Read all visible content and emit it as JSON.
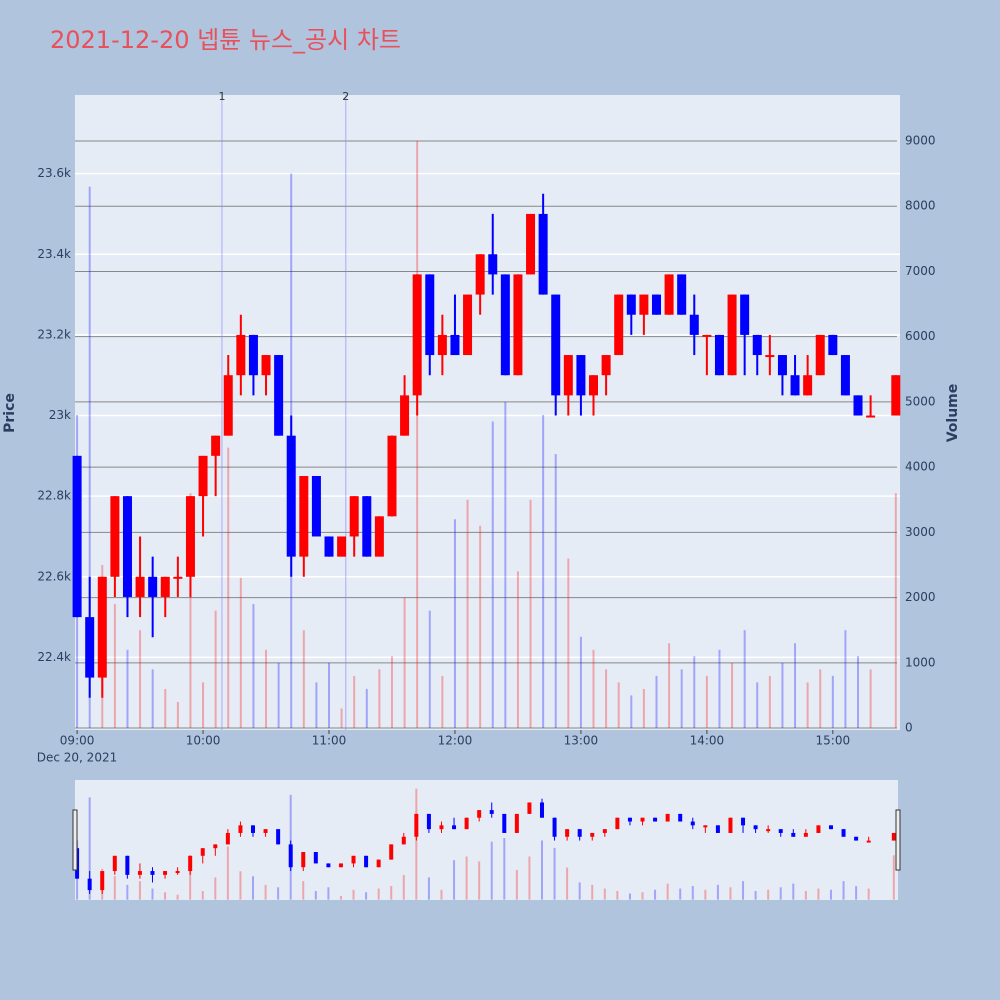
{
  "chart_data": {
    "type": "candlestick",
    "title": "2021-12-20 넵튠 뉴스_공시 차트",
    "y_label": "Price",
    "y2_label": "Volume",
    "x_date_label": "Dec 20, 2021",
    "increasing_color": "#ff0000",
    "decreasing_color": "#0000ff",
    "grid": true,
    "rangeslider": true,
    "xlim": [
      "08:59",
      "15:32"
    ],
    "xticks": [
      "09:00",
      "10:00",
      "11:00",
      "12:00",
      "13:00",
      "14:00",
      "15:00"
    ],
    "ylim": [
      22220,
      23795
    ],
    "yticks": [
      {
        "value": 22400,
        "label": "22.4k"
      },
      {
        "value": 22600,
        "label": "22.6k"
      },
      {
        "value": 22800,
        "label": "22.8k"
      },
      {
        "value": 23000,
        "label": "23k"
      },
      {
        "value": 23200,
        "label": "23.2k"
      },
      {
        "value": 23400,
        "label": "23.4k"
      },
      {
        "value": 23600,
        "label": "23.6k"
      }
    ],
    "y2lim": [
      -30,
      9705
    ],
    "y2ticks": [
      0,
      1000,
      2000,
      3000,
      4000,
      5000,
      6000,
      7000,
      8000,
      9000
    ],
    "annotations": [
      {
        "x": "10:09",
        "text": "1"
      },
      {
        "x": "11:08",
        "text": "2"
      }
    ],
    "x": [
      "09:00",
      "09:06",
      "09:12",
      "09:18",
      "09:24",
      "09:30",
      "09:36",
      "09:42",
      "09:48",
      "09:54",
      "10:00",
      "10:06",
      "10:12",
      "10:18",
      "10:24",
      "10:30",
      "10:36",
      "10:42",
      "10:48",
      "10:54",
      "11:00",
      "11:06",
      "11:12",
      "11:18",
      "11:24",
      "11:30",
      "11:36",
      "11:42",
      "11:48",
      "11:54",
      "12:00",
      "12:06",
      "12:12",
      "12:18",
      "12:24",
      "12:30",
      "12:36",
      "12:42",
      "12:48",
      "12:54",
      "13:00",
      "13:06",
      "13:12",
      "13:18",
      "13:24",
      "13:30",
      "13:36",
      "13:42",
      "13:48",
      "13:54",
      "14:00",
      "14:06",
      "14:12",
      "14:18",
      "14:24",
      "14:30",
      "14:36",
      "14:42",
      "14:48",
      "14:54",
      "15:00",
      "15:06",
      "15:12",
      "15:18",
      "15:30"
    ],
    "open": [
      22900,
      22500,
      22350,
      22600,
      22800,
      22550,
      22600,
      22550,
      22600,
      22600,
      22800,
      22900,
      22950,
      23100,
      23200,
      23100,
      23150,
      22950,
      22650,
      22850,
      22700,
      22650,
      22700,
      22800,
      22650,
      22750,
      22950,
      23050,
      23350,
      23150,
      23200,
      23150,
      23300,
      23400,
      23350,
      23100,
      23350,
      23500,
      23300,
      23050,
      23150,
      23050,
      23100,
      23150,
      23300,
      23250,
      23300,
      23250,
      23350,
      23250,
      23200,
      23200,
      23100,
      23300,
      23200,
      23150,
      23150,
      23100,
      23050,
      23100,
      23200,
      23150,
      23050,
      23000,
      23000
    ],
    "high": [
      22900,
      22600,
      22600,
      22800,
      22800,
      22700,
      22650,
      22600,
      22650,
      22800,
      22900,
      22950,
      23150,
      23250,
      23200,
      23150,
      23150,
      23000,
      22850,
      22850,
      22700,
      22700,
      22800,
      22800,
      22750,
      22950,
      23100,
      23350,
      23350,
      23250,
      23300,
      23300,
      23400,
      23500,
      23350,
      23350,
      23500,
      23550,
      23300,
      23150,
      23150,
      23100,
      23150,
      23300,
      23300,
      23300,
      23300,
      23350,
      23350,
      23300,
      23200,
      23200,
      23300,
      23300,
      23200,
      23200,
      23150,
      23150,
      23150,
      23200,
      23200,
      23150,
      23050,
      23050,
      23100
    ],
    "low": [
      22500,
      22300,
      22300,
      22550,
      22500,
      22500,
      22450,
      22500,
      22550,
      22550,
      22700,
      22800,
      22950,
      23050,
      23050,
      23050,
      22950,
      22600,
      22600,
      22700,
      22650,
      22650,
      22650,
      22650,
      22650,
      22750,
      22950,
      23000,
      23100,
      23100,
      23150,
      23150,
      23250,
      23300,
      23100,
      23100,
      23350,
      23300,
      23000,
      23000,
      23000,
      23000,
      23050,
      23150,
      23200,
      23200,
      23250,
      23250,
      23250,
      23150,
      23100,
      23100,
      23100,
      23100,
      23100,
      23100,
      23050,
      23050,
      23050,
      23100,
      23150,
      23050,
      23000,
      23000,
      23000
    ],
    "close": [
      22500,
      22350,
      22600,
      22800,
      22550,
      22600,
      22550,
      22600,
      22600,
      22800,
      22900,
      22950,
      23100,
      23200,
      23100,
      23150,
      22950,
      22650,
      22850,
      22700,
      22650,
      22700,
      22800,
      22650,
      22750,
      22950,
      23050,
      23350,
      23150,
      23200,
      23150,
      23300,
      23400,
      23350,
      23100,
      23350,
      23500,
      23300,
      23050,
      23150,
      23050,
      23100,
      23150,
      23300,
      23250,
      23300,
      23250,
      23350,
      23250,
      23200,
      23200,
      23100,
      23300,
      23200,
      23150,
      23150,
      23100,
      23050,
      23100,
      23200,
      23150,
      23050,
      23000,
      23000,
      23100
    ],
    "volume": [
      4800,
      8300,
      2500,
      1900,
      1200,
      1500,
      900,
      600,
      400,
      3600,
      700,
      1800,
      4300,
      2300,
      1900,
      1200,
      1000,
      8500,
      1500,
      700,
      1000,
      300,
      800,
      600,
      900,
      1100,
      2000,
      9000,
      1800,
      800,
      3200,
      3500,
      3100,
      4700,
      5000,
      2400,
      3500,
      4800,
      4200,
      2600,
      1400,
      1200,
      900,
      700,
      500,
      600,
      800,
      1300,
      900,
      1100,
      800,
      1200,
      1000,
      1500,
      700,
      800,
      1000,
      1300,
      700,
      900,
      800,
      1500,
      1100,
      900,
      3600
    ]
  }
}
